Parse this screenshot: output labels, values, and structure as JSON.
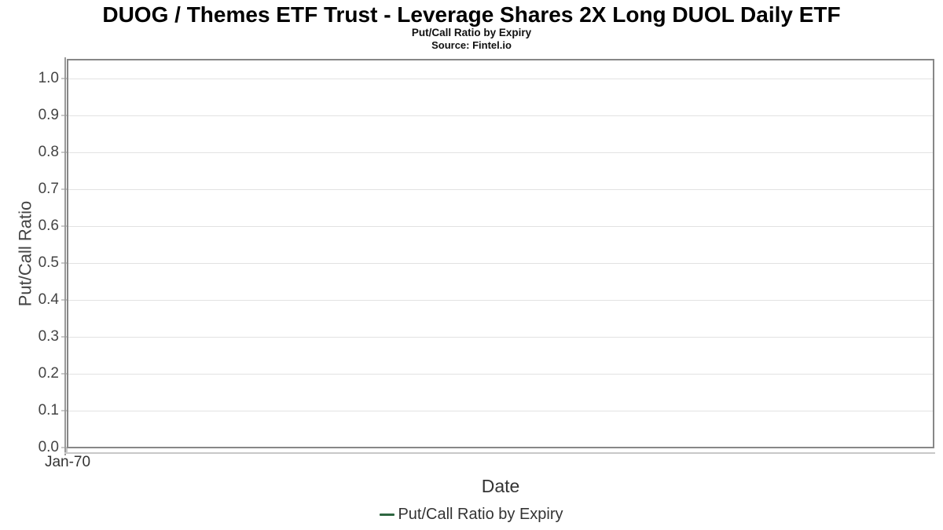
{
  "chart_data": {
    "type": "line",
    "title": "DUOG / Themes ETF Trust - Leverage Shares 2X Long DUOL Daily ETF",
    "subtitle": "Put/Call Ratio by Expiry",
    "source": "Source: Fintel.io",
    "xlabel": "Date",
    "ylabel": "Put/Call Ratio",
    "x_tick_labels": [
      "Jan-70"
    ],
    "y_ticks": [
      0.0,
      0.1,
      0.2,
      0.3,
      0.4,
      0.5,
      0.6,
      0.7,
      0.8,
      0.9,
      1.0
    ],
    "ylim": [
      0,
      1.053
    ],
    "grid": true,
    "legend": {
      "position": "bottom",
      "entries": [
        {
          "label": "Put/Call Ratio by Expiry",
          "color": "#2e6640"
        }
      ]
    },
    "series": [
      {
        "name": "Put/Call Ratio by Expiry",
        "color": "#2e6640",
        "x": [],
        "y": []
      }
    ]
  },
  "colors": {
    "background": "#ffffff",
    "grid_line": "#e2e2e2",
    "plot_border": "#878787",
    "axis_line": "#c8c8c8",
    "tick_mark": "#c8c8c8",
    "title_text": "#000000",
    "label_text": "#333333",
    "tick_text": "#444444",
    "series_green": "#2e6640"
  }
}
